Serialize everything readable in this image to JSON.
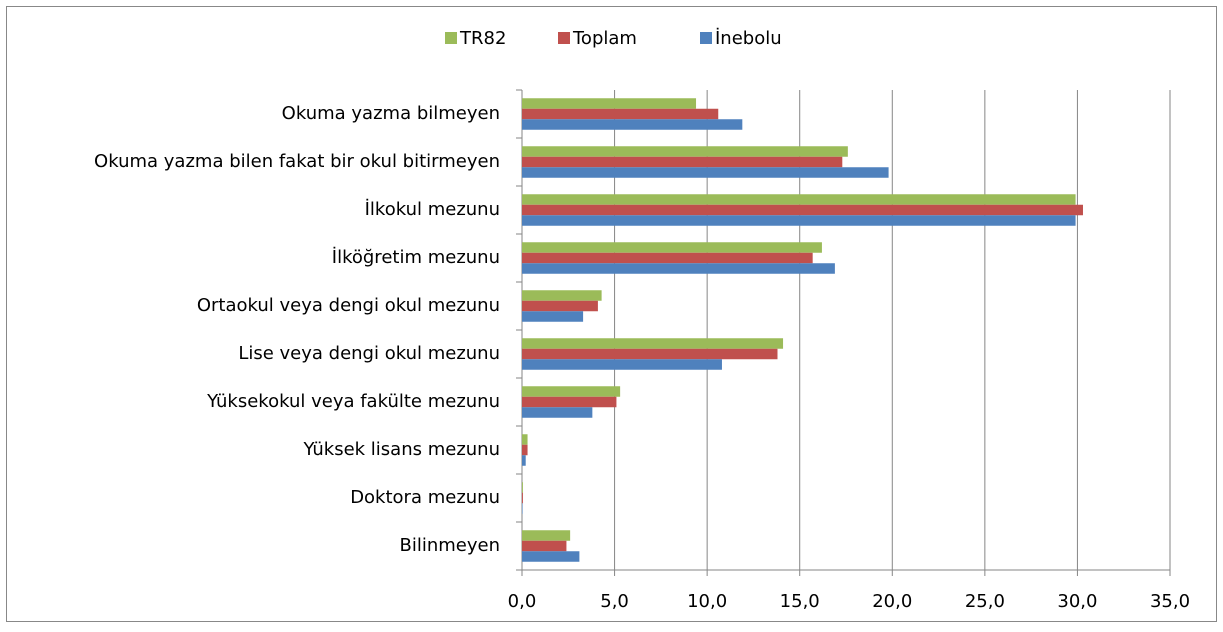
{
  "chart_data": {
    "type": "bar",
    "orientation": "horizontal",
    "categories": [
      "Okuma yazma bilmeyen",
      "Okuma yazma bilen fakat bir okul bitirmeyen",
      "İlkokul mezunu",
      "İlköğretim mezunu",
      "Ortaokul veya dengi okul mezunu",
      "Lise veya dengi okul mezunu",
      "Yüksekokul veya fakülte mezunu",
      "Yüksek lisans mezunu",
      "Doktora mezunu",
      "Bilinmeyen"
    ],
    "series": [
      {
        "name": "TR82",
        "color": "#9bbb59",
        "values": [
          9.4,
          17.6,
          29.9,
          16.2,
          4.3,
          14.1,
          5.3,
          0.3,
          0.05,
          2.6
        ]
      },
      {
        "name": "Toplam",
        "color": "#c0504d",
        "values": [
          10.6,
          17.3,
          30.3,
          15.7,
          4.1,
          13.8,
          5.1,
          0.3,
          0.05,
          2.4
        ]
      },
      {
        "name": "İnebolu",
        "color": "#4f81bd",
        "values": [
          11.9,
          19.8,
          29.9,
          16.9,
          3.3,
          10.8,
          3.8,
          0.2,
          0.03,
          3.1
        ]
      }
    ],
    "xlim": [
      0,
      35
    ],
    "xticks": [
      {
        "value": 0,
        "label": "0,0"
      },
      {
        "value": 5,
        "label": "5,0"
      },
      {
        "value": 10,
        "label": "10,0"
      },
      {
        "value": 15,
        "label": "15,0"
      },
      {
        "value": 20,
        "label": "20,0"
      },
      {
        "value": 25,
        "label": "25,0"
      },
      {
        "value": 30,
        "label": "30,0"
      },
      {
        "value": 35,
        "label": "35,0"
      }
    ],
    "grid": true,
    "legend": "top"
  }
}
